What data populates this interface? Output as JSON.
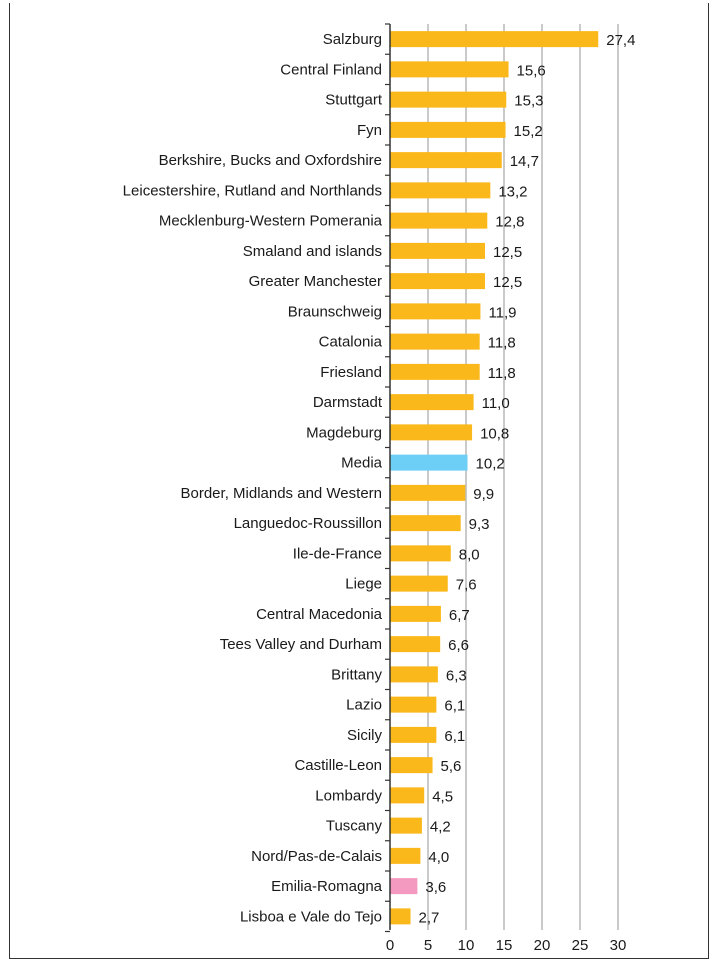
{
  "chart_data": {
    "type": "bar",
    "orientation": "horizontal",
    "categories": [
      "Salzburg",
      "Central Finland",
      "Stuttgart",
      "Fyn",
      "Berkshire, Bucks and Oxfordshire",
      "Leicestershire, Rutland and Northlands",
      "Mecklenburg-Western Pomerania",
      "Smaland and islands",
      "Greater Manchester",
      "Braunschweig",
      "Catalonia",
      "Friesland",
      "Darmstadt",
      "Magdeburg",
      "Media",
      "Border, Midlands and Western",
      "Languedoc-Roussillon",
      "Ile-de-France",
      "Liege",
      "Central Macedonia",
      "Tees Valley and Durham",
      "Brittany",
      "Lazio",
      "Sicily",
      "Castille-Leon",
      "Lombardy",
      "Tuscany",
      "Nord/Pas-de-Calais",
      "Emilia-Romagna",
      "Lisboa e Vale do Tejo"
    ],
    "values": [
      27.4,
      15.6,
      15.3,
      15.2,
      14.7,
      13.2,
      12.8,
      12.5,
      12.5,
      11.9,
      11.8,
      11.8,
      11.0,
      10.8,
      10.2,
      9.9,
      9.3,
      8.0,
      7.6,
      6.7,
      6.6,
      6.3,
      6.1,
      6.1,
      5.6,
      4.5,
      4.2,
      4.0,
      3.6,
      2.7
    ],
    "value_labels": [
      "27,4",
      "15,6",
      "15,3",
      "15,2",
      "14,7",
      "13,2",
      "12,8",
      "12,5",
      "12,5",
      "11,9",
      "11,8",
      "11,8",
      "11,0",
      "10,8",
      "10,2",
      "9,9",
      "9,3",
      "8,0",
      "7,6",
      "6,7",
      "6,6",
      "6,3",
      "6,1",
      "6,1",
      "5,6",
      "4,5",
      "4,2",
      "4,0",
      "3,6",
      "2,7"
    ],
    "bar_colors": [
      "#fbb81a",
      "#fbb81a",
      "#fbb81a",
      "#fbb81a",
      "#fbb81a",
      "#fbb81a",
      "#fbb81a",
      "#fbb81a",
      "#fbb81a",
      "#fbb81a",
      "#fbb81a",
      "#fbb81a",
      "#fbb81a",
      "#fbb81a",
      "#6ecff6",
      "#fbb81a",
      "#fbb81a",
      "#fbb81a",
      "#fbb81a",
      "#fbb81a",
      "#fbb81a",
      "#fbb81a",
      "#fbb81a",
      "#fbb81a",
      "#fbb81a",
      "#fbb81a",
      "#fbb81a",
      "#fbb81a",
      "#f49ac1",
      "#fbb81a"
    ],
    "xlim": [
      0,
      30
    ],
    "xticks": [
      0,
      5,
      10,
      15,
      20,
      25,
      30
    ],
    "xtick_labels": [
      "0",
      "5",
      "10",
      "15",
      "20",
      "25",
      "30"
    ],
    "grid": "vertical",
    "title": "",
    "xlabel": "",
    "ylabel": "",
    "colors": {
      "bar_default": "#fbb81a",
      "bar_highlight_media": "#6ecff6",
      "bar_highlight_low": "#f49ac1",
      "grid": "#a6a6a6",
      "axis": "#333333"
    }
  }
}
